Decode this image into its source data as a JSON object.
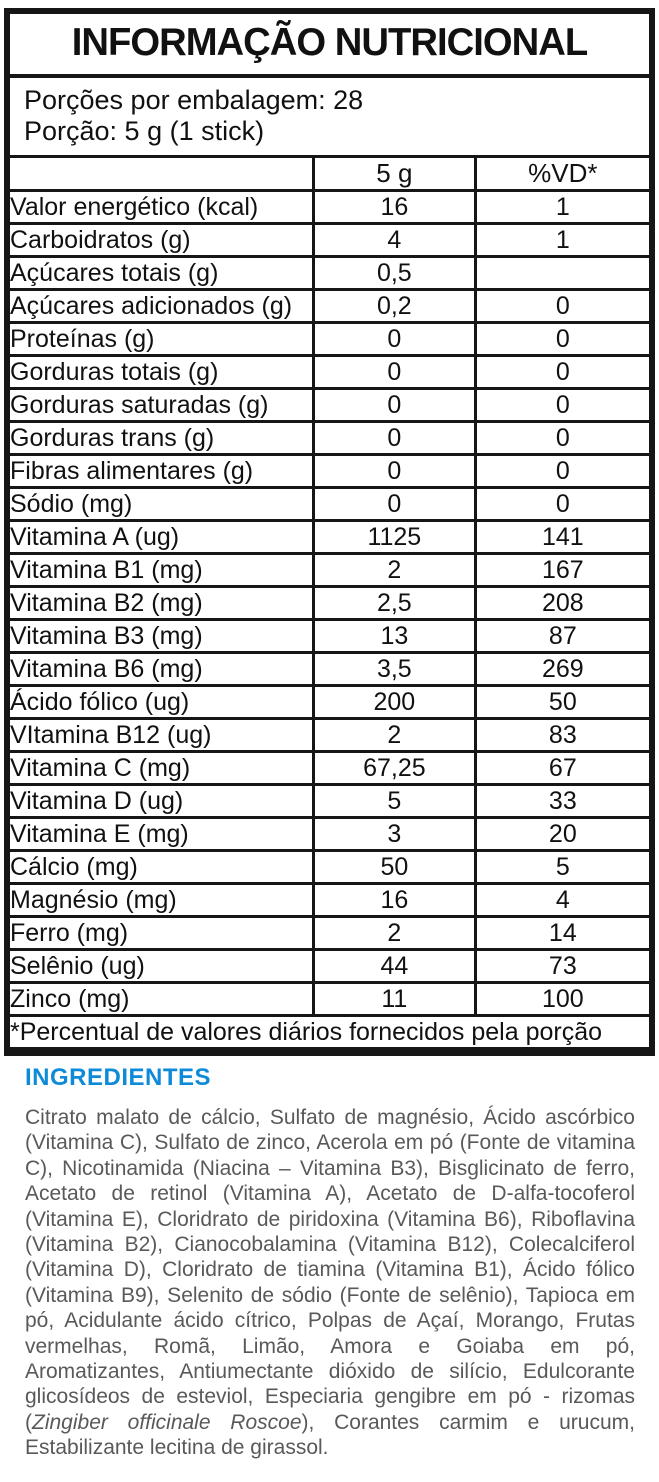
{
  "table": {
    "title": "INFORMAÇÃO NUTRICIONAL",
    "servings_line1": "Porções por embalagem: 28",
    "servings_line2": "Porção: 5 g (1 stick)",
    "columns": {
      "label": "",
      "amount": "5 g",
      "dv": "%VD*"
    },
    "rows": [
      {
        "label": "Valor energético (kcal)",
        "indent": 0,
        "amount": "16",
        "dv": "1"
      },
      {
        "label": "Carboidratos (g)",
        "indent": 0,
        "amount": "4",
        "dv": "1"
      },
      {
        "label": "Açúcares totais (g)",
        "indent": 1,
        "amount": "0,5",
        "dv": ""
      },
      {
        "label": "Açúcares adicionados (g)",
        "indent": 2,
        "amount": "0,2",
        "dv": "0"
      },
      {
        "label": "Proteínas (g)",
        "indent": 0,
        "amount": "0",
        "dv": "0"
      },
      {
        "label": "Gorduras totais (g)",
        "indent": 0,
        "amount": "0",
        "dv": "0"
      },
      {
        "label": "Gorduras saturadas (g)",
        "indent": 1,
        "amount": "0",
        "dv": "0"
      },
      {
        "label": "Gorduras trans (g)",
        "indent": 1,
        "amount": "0",
        "dv": "0"
      },
      {
        "label": "Fibras alimentares (g)",
        "indent": 0,
        "amount": "0",
        "dv": "0"
      },
      {
        "label": "Sódio (mg)",
        "indent": 0,
        "amount": "0",
        "dv": "0"
      },
      {
        "label": "Vitamina A (ug)",
        "indent": 0,
        "amount": "1125",
        "dv": "141"
      },
      {
        "label": "Vitamina B1 (mg)",
        "indent": 0,
        "amount": "2",
        "dv": "167"
      },
      {
        "label": "Vitamina B2 (mg)",
        "indent": 0,
        "amount": "2,5",
        "dv": "208"
      },
      {
        "label": "Vitamina B3 (mg)",
        "indent": 0,
        "amount": "13",
        "dv": "87"
      },
      {
        "label": "Vitamina B6 (mg)",
        "indent": 0,
        "amount": "3,5",
        "dv": "269"
      },
      {
        "label": "Ácido fólico (ug)",
        "indent": 0,
        "amount": "200",
        "dv": "50"
      },
      {
        "label": "VItamina B12 (ug)",
        "indent": 0,
        "amount": "2",
        "dv": "83"
      },
      {
        "label": "Vitamina C (mg)",
        "indent": 0,
        "amount": "67,25",
        "dv": "67"
      },
      {
        "label": "Vitamina D (ug)",
        "indent": 0,
        "amount": "5",
        "dv": "33"
      },
      {
        "label": "Vitamina E (mg)",
        "indent": 0,
        "amount": "3",
        "dv": "20"
      },
      {
        "label": "Cálcio (mg)",
        "indent": 0,
        "amount": "50",
        "dv": "5"
      },
      {
        "label": "Magnésio (mg)",
        "indent": 0,
        "amount": "16",
        "dv": "4"
      },
      {
        "label": "Ferro (mg)",
        "indent": 0,
        "amount": "2",
        "dv": "14"
      },
      {
        "label": "Selênio (ug)",
        "indent": 0,
        "amount": "44",
        "dv": "73"
      },
      {
        "label": "Zinco (mg)",
        "indent": 0,
        "amount": "11",
        "dv": "100"
      }
    ],
    "footnote": "*Percentual de valores diários fornecidos pela porção"
  },
  "ingredients": {
    "heading": "INGREDIENTES",
    "heading_color": "#0E8BD8",
    "body_color": "#58595B",
    "text_part1": "Citrato malato de cálcio, Sulfato de magnésio, Ácido ascórbico (Vitamina C), Sulfato de zinco, Acerola em pó (Fonte de vitamina C), Nicotinamida (Niacina – Vitamina B3), Bisglicinato de ferro, Acetato de retinol (Vitamina A), Acetato de D-alfa-tocoferol (Vitamina E), Cloridrato de piridoxina (Vitamina B6), Riboflavina (Vitamina B2), Cianocobalamina (Vitamina B12), Colecalciferol (Vitamina D), Cloridrato de tiamina (Vitamina B1), Ácido fólico (Vitamina B9), Selenito de sódio (Fonte de selênio), Tapioca em pó, Acidulante ácido cítrico, Polpas de Açaí, Morango, Frutas vermelhas, Romã, Limão, Amora e Goiaba em pó, Aromatizantes, Antiumectante dióxido de silício, Edulcorante glicosídeos de esteviol, Especiaria gengibre em pó - rizomas (",
    "species_italic": "Zingiber officinale Roscoe",
    "text_part2": "), Corantes carmim e urucum, Estabilizante lecitina de girassol."
  }
}
